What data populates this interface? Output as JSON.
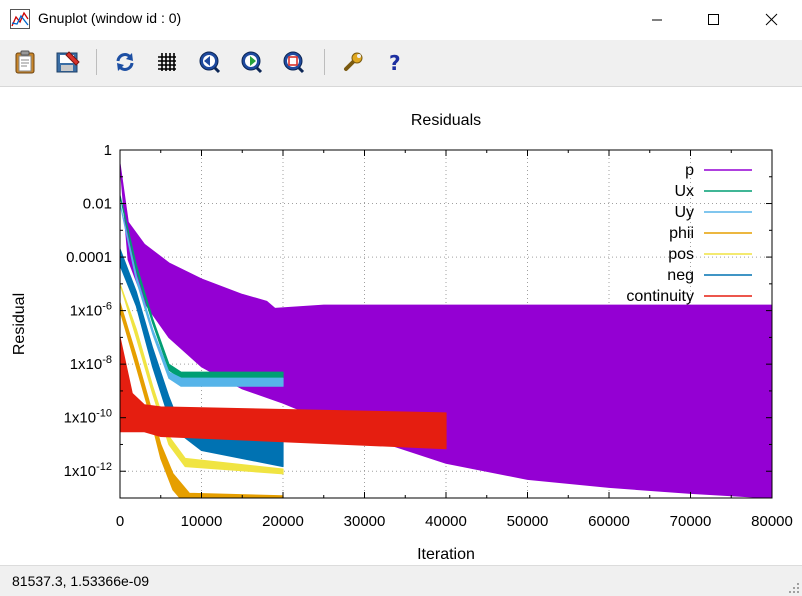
{
  "window": {
    "title": "Gnuplot (window id : 0)"
  },
  "toolbar": {
    "buttons": [
      {
        "name": "copy-to-clipboard",
        "icon": "clipboard-icon"
      },
      {
        "name": "print",
        "icon": "print-icon"
      },
      {
        "name": "replot",
        "icon": "replot-icon"
      },
      {
        "name": "toggle-grid",
        "icon": "grid-icon"
      },
      {
        "name": "previous-zoom",
        "icon": "zoom-back-icon"
      },
      {
        "name": "next-zoom",
        "icon": "zoom-forward-icon"
      },
      {
        "name": "autoscale",
        "icon": "autoscale-icon"
      },
      {
        "name": "options",
        "icon": "wrench-icon"
      },
      {
        "name": "help",
        "icon": "help-icon"
      }
    ]
  },
  "status": {
    "coords": "81537.3,  1.53366e-09"
  },
  "chart_data": {
    "type": "line",
    "title": "Residuals",
    "xlabel": "Iteration",
    "ylabel": "Residual",
    "xlim": [
      0,
      80000
    ],
    "ylim": [
      1e-13,
      1
    ],
    "yscale": "log",
    "grid": true,
    "legend_position": "top-right",
    "xticks": [
      {
        "value": 0,
        "label": "0"
      },
      {
        "value": 10000,
        "label": "10000"
      },
      {
        "value": 20000,
        "label": "20000"
      },
      {
        "value": 30000,
        "label": "30000"
      },
      {
        "value": 40000,
        "label": "40000"
      },
      {
        "value": 50000,
        "label": "50000"
      },
      {
        "value": 60000,
        "label": "60000"
      },
      {
        "value": 70000,
        "label": "70000"
      },
      {
        "value": 80000,
        "label": "80000"
      }
    ],
    "yticks": [
      {
        "value": 1,
        "label": "1"
      },
      {
        "value": 0.01,
        "label": "0.01"
      },
      {
        "value": 0.0001,
        "label": "0.0001"
      },
      {
        "value": 1e-06,
        "label": "1x10-6",
        "base": "1x10",
        "exp": "-6"
      },
      {
        "value": 1e-08,
        "label": "1x10-8",
        "base": "1x10",
        "exp": "-8"
      },
      {
        "value": 1e-10,
        "label": "1x10-10",
        "base": "1x10",
        "exp": "-10"
      },
      {
        "value": 1e-12,
        "label": "1x10-12",
        "base": "1x10",
        "exp": "-12"
      }
    ],
    "series": [
      {
        "name": "p",
        "color": "#9400d3",
        "upper": [
          [
            0,
            0.3
          ],
          [
            1000,
            0.002
          ],
          [
            3000,
            0.0003
          ],
          [
            6000,
            6e-05
          ],
          [
            10000,
            1.5e-05
          ],
          [
            15000,
            4e-06
          ],
          [
            18000,
            2.2e-06
          ],
          [
            19000,
            1.2e-06
          ],
          [
            25000,
            1.6e-06
          ],
          [
            80000,
            1.6e-06
          ]
        ],
        "lower": [
          [
            0,
            0.3
          ],
          [
            1000,
            8e-05
          ],
          [
            3000,
            2e-06
          ],
          [
            6000,
            1e-07
          ],
          [
            10000,
            8e-09
          ],
          [
            15000,
            1.2e-09
          ],
          [
            20000,
            3.5e-10
          ],
          [
            30000,
            2e-11
          ],
          [
            40000,
            2e-12
          ],
          [
            50000,
            5e-13
          ],
          [
            60000,
            2.5e-13
          ],
          [
            70000,
            1.5e-13
          ],
          [
            80000,
            1e-13
          ]
        ]
      },
      {
        "name": "Ux",
        "color": "#009e73",
        "upper": [
          [
            0,
            0.02
          ],
          [
            2000,
            5e-05
          ],
          [
            4000,
            5e-07
          ],
          [
            6000,
            1e-08
          ],
          [
            7500,
            5e-09
          ],
          [
            20000,
            5e-09
          ]
        ],
        "lower": [
          [
            0,
            0.02
          ],
          [
            2000,
            3.5e-05
          ],
          [
            4000,
            3.5e-07
          ],
          [
            6000,
            6e-09
          ],
          [
            7500,
            3e-09
          ],
          [
            20000,
            3e-09
          ]
        ]
      },
      {
        "name": "Uy",
        "color": "#56b4e9",
        "upper": [
          [
            0,
            0.01
          ],
          [
            2000,
            2e-05
          ],
          [
            4000,
            2e-07
          ],
          [
            6000,
            5e-09
          ],
          [
            7500,
            3e-09
          ],
          [
            20000,
            3e-09
          ]
        ],
        "lower": [
          [
            0,
            0.01
          ],
          [
            2000,
            1.4e-05
          ],
          [
            4000,
            1.4e-07
          ],
          [
            6000,
            3e-09
          ],
          [
            7500,
            1.5e-09
          ],
          [
            20000,
            1.5e-09
          ]
        ]
      },
      {
        "name": "phii",
        "color": "#e69f00",
        "upper": [
          [
            0,
            2e-06
          ],
          [
            2000,
            2e-08
          ],
          [
            3500,
            5e-10
          ],
          [
            5000,
            1e-11
          ],
          [
            6500,
            8e-13
          ],
          [
            8500,
            1.5e-13
          ],
          [
            20000,
            1.2e-13
          ]
        ],
        "lower": [
          [
            0,
            1e-06
          ],
          [
            2000,
            8e-09
          ],
          [
            3500,
            2e-10
          ],
          [
            5000,
            3e-12
          ],
          [
            6500,
            2e-13
          ],
          [
            8500,
            4e-14
          ],
          [
            20000,
            2.5e-14
          ]
        ]
      },
      {
        "name": "pos",
        "color": "#f0e442",
        "upper": [
          [
            0,
            1e-05
          ],
          [
            2000,
            2e-07
          ],
          [
            4000,
            1.5e-09
          ],
          [
            6000,
            2e-11
          ],
          [
            8000,
            3e-12
          ],
          [
            20000,
            1.2e-12
          ]
        ],
        "lower": [
          [
            0,
            1e-05
          ],
          [
            2000,
            1e-07
          ],
          [
            4000,
            8e-10
          ],
          [
            6000,
            1e-11
          ],
          [
            8000,
            1.5e-12
          ],
          [
            20000,
            8e-13
          ]
        ]
      },
      {
        "name": "neg",
        "color": "#0072b2",
        "upper": [
          [
            0,
            0.0002
          ],
          [
            2000,
            5e-06
          ],
          [
            4000,
            4e-08
          ],
          [
            6000,
            6e-10
          ],
          [
            7000,
            1e-10
          ],
          [
            10000,
            5e-11
          ],
          [
            20000,
            3e-11
          ]
        ],
        "lower": [
          [
            0,
            5e-05
          ],
          [
            2000,
            1.5e-06
          ],
          [
            4000,
            8e-09
          ],
          [
            6000,
            1e-10
          ],
          [
            7000,
            3e-11
          ],
          [
            10000,
            6e-12
          ],
          [
            20000,
            1.5e-12
          ]
        ]
      },
      {
        "name": "continuity",
        "color": "#e51e10",
        "upper": [
          [
            0,
            1e-07
          ],
          [
            1500,
            8e-10
          ],
          [
            3000,
            3e-10
          ],
          [
            5000,
            2.5e-10
          ],
          [
            40000,
            1.5e-10
          ]
        ],
        "lower": [
          [
            0,
            3e-11
          ],
          [
            1500,
            3e-11
          ],
          [
            3000,
            3e-11
          ],
          [
            5000,
            2e-11
          ],
          [
            40000,
            7e-12
          ]
        ]
      }
    ]
  }
}
